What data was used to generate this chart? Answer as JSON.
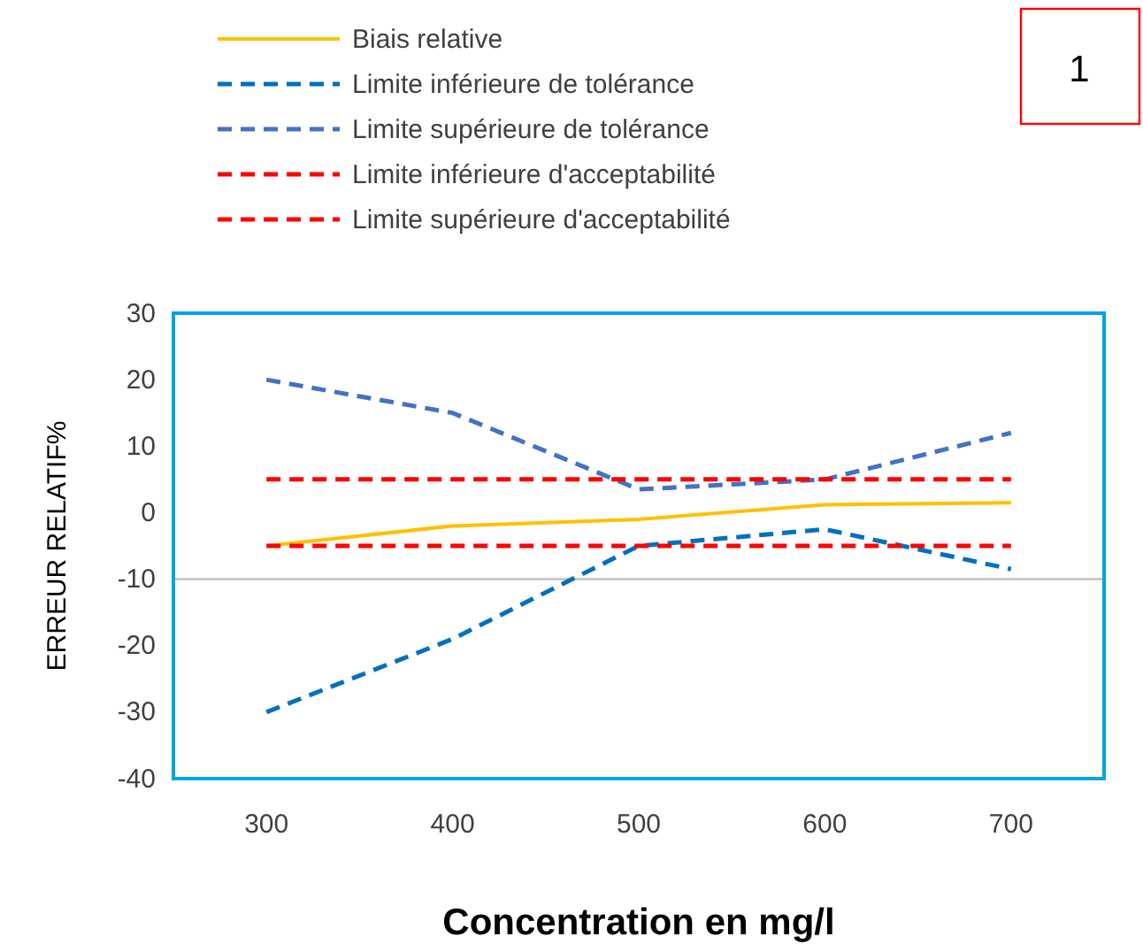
{
  "chart_data": {
    "type": "line",
    "xlabel": "Concentration en mg/l",
    "ylabel": "ERREUR RELATIF%",
    "x": [
      300,
      400,
      500,
      600,
      700
    ],
    "series": [
      {
        "name": "Biais relative",
        "color": "#ffc000",
        "line_style": "solid",
        "values": [
          -5,
          -2,
          -1,
          1.2,
          1.5
        ]
      },
      {
        "name": "Limite inférieure de tolérance",
        "color": "#0070c0",
        "line_style": "dashed",
        "values": [
          -30,
          -19,
          -5,
          -2.5,
          -8.5
        ]
      },
      {
        "name": "Limite supérieure de tolérance",
        "color": "#4472c4",
        "line_style": "dashed",
        "values": [
          20,
          15,
          3.5,
          5,
          12
        ]
      },
      {
        "name": "Limite inférieure d'acceptabilité",
        "color": "#ff0000",
        "line_style": "dashed",
        "values": [
          -5,
          -5,
          -5,
          -5,
          -5
        ]
      },
      {
        "name": "Limite supérieure d'acceptabilité",
        "color": "#ff0000",
        "line_style": "dashed",
        "values": [
          5,
          5,
          5,
          5,
          5
        ]
      }
    ],
    "xlim": [
      250,
      750
    ],
    "xticks": [
      300,
      400,
      500,
      600,
      700
    ],
    "ylim": [
      -40,
      30
    ],
    "yticks": [
      -40,
      -30,
      -20,
      -10,
      0,
      10,
      20,
      30
    ],
    "ref_lines": [
      {
        "axis": "y",
        "value": -10,
        "color": "#bfbfbf"
      }
    ],
    "grid": false,
    "legend": "top",
    "marker": "none",
    "annotations": [
      "1"
    ]
  }
}
